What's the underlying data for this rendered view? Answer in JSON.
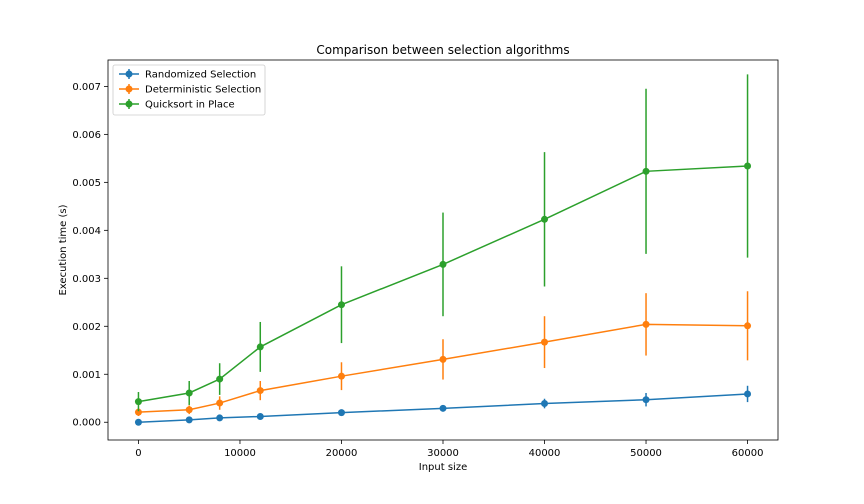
{
  "chart_data": {
    "type": "line",
    "title": "Comparison between selection algorithms",
    "xlabel": "Input size",
    "ylabel": "Execution time (s)",
    "xlim": [
      -3000,
      63000
    ],
    "ylim": [
      -0.00037,
      0.00755
    ],
    "xticks": [
      0,
      10000,
      20000,
      30000,
      40000,
      50000,
      60000
    ],
    "xtick_labels": [
      "0",
      "10000",
      "20000",
      "30000",
      "40000",
      "50000",
      "60000"
    ],
    "yticks": [
      0,
      0.001,
      0.002,
      0.003,
      0.004,
      0.005,
      0.006,
      0.007
    ],
    "ytick_labels": [
      "0.000",
      "0.001",
      "0.002",
      "0.003",
      "0.004",
      "0.005",
      "0.006",
      "0.007"
    ],
    "grid": false,
    "legend_position": "top-left",
    "series": [
      {
        "name": "Randomized Selection",
        "color": "#1f77b4",
        "x": [
          0,
          5000,
          8000,
          12000,
          20000,
          30000,
          40000,
          50000,
          60000
        ],
        "y": [
          0.0,
          5e-05,
          9e-05,
          0.00012,
          0.0002,
          0.00029,
          0.00039,
          0.00047,
          0.00059
        ],
        "err": [
          1e-05,
          2e-05,
          3e-05,
          3e-05,
          4e-05,
          6e-05,
          0.0001,
          0.00014,
          0.00017
        ]
      },
      {
        "name": "Deterministic Selection",
        "color": "#ff7f0e",
        "x": [
          0,
          5000,
          8000,
          12000,
          20000,
          30000,
          40000,
          50000,
          60000
        ],
        "y": [
          0.00021,
          0.00026,
          0.0004,
          0.00066,
          0.00096,
          0.00131,
          0.00167,
          0.00204,
          0.00201
        ],
        "err": [
          8e-05,
          9e-05,
          0.00014,
          0.0002,
          0.00029,
          0.00042,
          0.00054,
          0.00065,
          0.00072
        ]
      },
      {
        "name": "Quicksort in Place",
        "color": "#2ca02c",
        "x": [
          0,
          5000,
          8000,
          12000,
          20000,
          30000,
          40000,
          50000,
          60000
        ],
        "y": [
          0.00043,
          0.00061,
          0.0009,
          0.00157,
          0.00245,
          0.00329,
          0.00423,
          0.00523,
          0.00534
        ],
        "err": [
          0.0002,
          0.00025,
          0.00033,
          0.00052,
          0.0008,
          0.00108,
          0.0014,
          0.00172,
          0.00191
        ]
      }
    ]
  }
}
